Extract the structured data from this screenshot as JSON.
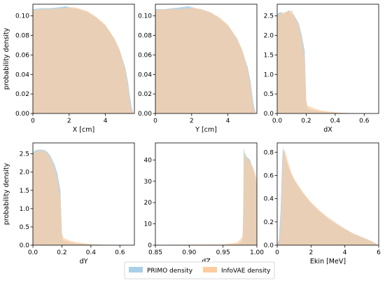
{
  "colors": {
    "primo": "#a9cfe8",
    "infovae": "#fdcc9f",
    "overlap": "#cdb8a6"
  },
  "legend": {
    "items": [
      {
        "label": "PRIMO density",
        "color": "#a9cfe8"
      },
      {
        "label": "InfoVAE density",
        "color": "#fdcc9f"
      }
    ],
    "placement": "bottom-center"
  },
  "chart_data": [
    {
      "type": "area",
      "id": "X",
      "xlabel": "X [cm]",
      "ylabel": "probability density",
      "xlim": [
        0,
        5.6
      ],
      "ylim": [
        0,
        0.112
      ],
      "xticks": [
        0,
        2,
        4
      ],
      "xticklabels": [
        "0",
        "2",
        "4"
      ],
      "yticks": [
        0,
        0.02,
        0.04,
        0.06,
        0.08,
        0.1
      ],
      "yticklabels": [
        "0.00",
        "0.02",
        "0.04",
        "0.06",
        "0.08",
        "0.10"
      ],
      "series": [
        {
          "name": "PRIMO density",
          "x": [
            0,
            0.5,
            1,
            1.5,
            1.8,
            2.2,
            2.5,
            3,
            3.5,
            4,
            4.5,
            4.8,
            5.1,
            5.25,
            5.35,
            5.45,
            5.55
          ],
          "values": [
            0.107,
            0.108,
            0.108,
            0.109,
            0.11,
            0.108,
            0.107,
            0.104,
            0.098,
            0.09,
            0.076,
            0.064,
            0.047,
            0.032,
            0.018,
            0.006,
            0.0
          ]
        },
        {
          "name": "InfoVAE density",
          "x": [
            0,
            0.5,
            1,
            1.5,
            1.8,
            2.2,
            2.5,
            3,
            3.5,
            4,
            4.5,
            4.8,
            5.1,
            5.25,
            5.35,
            5.45,
            5.55
          ],
          "values": [
            0.106,
            0.107,
            0.107,
            0.108,
            0.108,
            0.109,
            0.108,
            0.105,
            0.099,
            0.091,
            0.077,
            0.065,
            0.045,
            0.028,
            0.012,
            0.003,
            0.0
          ]
        }
      ]
    },
    {
      "type": "area",
      "id": "Y",
      "xlabel": "Y [cm]",
      "ylabel": "",
      "xlim": [
        0,
        5.6
      ],
      "ylim": [
        0,
        0.112
      ],
      "xticks": [
        0,
        2,
        4
      ],
      "xticklabels": [
        "0",
        "2",
        "4"
      ],
      "yticks": [
        0,
        0.02,
        0.04,
        0.06,
        0.08,
        0.1
      ],
      "yticklabels": [
        "0.00",
        "0.02",
        "0.04",
        "0.06",
        "0.08",
        "0.10"
      ],
      "series": [
        {
          "name": "PRIMO density",
          "x": [
            0,
            0.5,
            1,
            1.5,
            1.8,
            2.2,
            2.5,
            3,
            3.5,
            4,
            4.5,
            4.8,
            5.1,
            5.25,
            5.35,
            5.45,
            5.55
          ],
          "values": [
            0.107,
            0.107,
            0.108,
            0.109,
            0.11,
            0.108,
            0.107,
            0.104,
            0.098,
            0.09,
            0.077,
            0.064,
            0.047,
            0.033,
            0.018,
            0.006,
            0.0
          ]
        },
        {
          "name": "InfoVAE density",
          "x": [
            0,
            0.5,
            1,
            1.5,
            1.8,
            2.2,
            2.5,
            3,
            3.5,
            4,
            4.5,
            4.8,
            5.1,
            5.25,
            5.35,
            5.45,
            5.55
          ],
          "values": [
            0.106,
            0.107,
            0.107,
            0.107,
            0.108,
            0.108,
            0.107,
            0.104,
            0.099,
            0.091,
            0.077,
            0.065,
            0.045,
            0.029,
            0.013,
            0.003,
            0.0
          ]
        }
      ]
    },
    {
      "type": "area",
      "id": "dX",
      "xlabel": "dX",
      "ylabel": "",
      "xlim": [
        0,
        0.7
      ],
      "ylim": [
        0,
        2.8
      ],
      "xticks": [
        0,
        0.2,
        0.4,
        0.6
      ],
      "xticklabels": [
        "0.0",
        "0.2",
        "0.4",
        "0.6"
      ],
      "yticks": [
        0,
        0.5,
        1.0,
        1.5,
        2.0,
        2.5
      ],
      "yticklabels": [
        "0.0",
        "0.5",
        "1.0",
        "1.5",
        "2.0",
        "2.5"
      ],
      "series": [
        {
          "name": "PRIMO density",
          "x": [
            0,
            0.02,
            0.05,
            0.08,
            0.1,
            0.12,
            0.15,
            0.17,
            0.19,
            0.2,
            0.21,
            0.25,
            0.3,
            0.4,
            0.5,
            0.6,
            0.7
          ],
          "values": [
            2.55,
            2.6,
            2.55,
            2.65,
            2.55,
            2.5,
            2.3,
            2.0,
            1.6,
            0.3,
            0.12,
            0.08,
            0.05,
            0.02,
            0.01,
            0.005,
            0.0
          ]
        },
        {
          "name": "InfoVAE density",
          "x": [
            0,
            0.02,
            0.05,
            0.08,
            0.1,
            0.12,
            0.15,
            0.17,
            0.19,
            0.2,
            0.21,
            0.25,
            0.3,
            0.4,
            0.5,
            0.6,
            0.7
          ],
          "values": [
            2.5,
            2.55,
            2.6,
            2.6,
            2.65,
            2.5,
            2.25,
            1.9,
            1.4,
            0.35,
            0.2,
            0.14,
            0.08,
            0.03,
            0.01,
            0.005,
            0.0
          ]
        }
      ]
    },
    {
      "type": "area",
      "id": "dY",
      "xlabel": "dY",
      "ylabel": "probability density",
      "xlim": [
        0,
        0.7
      ],
      "ylim": [
        0,
        2.8
      ],
      "xticks": [
        0,
        0.2,
        0.4,
        0.6
      ],
      "xticklabels": [
        "0.0",
        "0.2",
        "0.4",
        "0.6"
      ],
      "yticks": [
        0,
        0.5,
        1.0,
        1.5,
        2.0,
        2.5
      ],
      "yticklabels": [
        "0.0",
        "0.5",
        "1.0",
        "1.5",
        "2.0",
        "2.5"
      ],
      "series": [
        {
          "name": "PRIMO density",
          "x": [
            0,
            0.02,
            0.05,
            0.08,
            0.1,
            0.12,
            0.15,
            0.17,
            0.19,
            0.2,
            0.21,
            0.25,
            0.3,
            0.4,
            0.5,
            0.6,
            0.7
          ],
          "values": [
            2.55,
            2.6,
            2.62,
            2.6,
            2.55,
            2.45,
            2.2,
            1.95,
            1.5,
            0.3,
            0.12,
            0.08,
            0.05,
            0.02,
            0.01,
            0.005,
            0.0
          ]
        },
        {
          "name": "InfoVAE density",
          "x": [
            0,
            0.02,
            0.05,
            0.08,
            0.1,
            0.12,
            0.15,
            0.17,
            0.19,
            0.2,
            0.21,
            0.25,
            0.3,
            0.4,
            0.5,
            0.6,
            0.7
          ],
          "values": [
            2.5,
            2.55,
            2.6,
            2.58,
            2.5,
            2.4,
            2.1,
            1.8,
            1.3,
            0.35,
            0.2,
            0.13,
            0.08,
            0.03,
            0.01,
            0.005,
            0.0
          ]
        }
      ]
    },
    {
      "type": "area",
      "id": "dZ",
      "xlabel": "dZ",
      "ylabel": "",
      "xlim": [
        0.85,
        1.0
      ],
      "ylim": [
        0,
        48
      ],
      "xticks": [
        0.85,
        0.9,
        0.95,
        1.0
      ],
      "xticklabels": [
        "0.85",
        "0.90",
        "0.95",
        "1.00"
      ],
      "yticks": [
        0,
        10,
        20,
        30,
        40
      ],
      "yticklabels": [
        "0",
        "10",
        "20",
        "30",
        "40"
      ],
      "series": [
        {
          "name": "PRIMO density",
          "x": [
            0.85,
            0.95,
            0.97,
            0.975,
            0.978,
            0.979,
            0.98,
            0.9805,
            0.982,
            0.985,
            0.99,
            0.995,
            1.0
          ],
          "values": [
            0.05,
            0.2,
            0.5,
            1.0,
            2.0,
            4.0,
            20.0,
            46.0,
            43.0,
            41.5,
            40.0,
            35.0,
            28.0
          ]
        },
        {
          "name": "InfoVAE density",
          "x": [
            0.85,
            0.95,
            0.97,
            0.975,
            0.978,
            0.979,
            0.98,
            0.9805,
            0.982,
            0.985,
            0.99,
            0.995,
            1.0
          ],
          "values": [
            0.08,
            0.4,
            1.2,
            2.5,
            3.5,
            5.0,
            18.0,
            40.0,
            43.5,
            41.0,
            39.0,
            36.0,
            31.0
          ]
        }
      ]
    },
    {
      "type": "area",
      "id": "Ekin",
      "xlabel": "Ekin [MeV]",
      "ylabel": "",
      "xlim": [
        0,
        6
      ],
      "ylim": [
        0,
        0.88
      ],
      "xticks": [
        0,
        2,
        4,
        6
      ],
      "xticklabels": [
        "0",
        "2",
        "4",
        "6"
      ],
      "yticks": [
        0,
        0.2,
        0.4,
        0.6,
        0.8
      ],
      "yticklabels": [
        "0.0",
        "0.2",
        "0.4",
        "0.6",
        "0.8"
      ],
      "series": [
        {
          "name": "PRIMO density",
          "x": [
            0,
            0.1,
            0.2,
            0.3,
            0.35,
            0.45,
            0.6,
            0.8,
            1,
            1.5,
            2,
            2.5,
            3,
            3.5,
            4,
            4.5,
            5,
            5.5,
            5.9
          ],
          "values": [
            0,
            0.05,
            0.3,
            0.75,
            0.84,
            0.78,
            0.7,
            0.62,
            0.56,
            0.45,
            0.36,
            0.29,
            0.23,
            0.18,
            0.14,
            0.1,
            0.07,
            0.04,
            0.01
          ]
        },
        {
          "name": "InfoVAE density",
          "x": [
            0,
            0.1,
            0.2,
            0.3,
            0.35,
            0.45,
            0.6,
            0.8,
            1,
            1.5,
            2,
            2.5,
            3,
            3.5,
            4,
            4.5,
            5,
            5.5,
            5.9
          ],
          "values": [
            0,
            0.02,
            0.15,
            0.6,
            0.78,
            0.82,
            0.74,
            0.64,
            0.57,
            0.46,
            0.37,
            0.3,
            0.24,
            0.19,
            0.14,
            0.1,
            0.07,
            0.04,
            0.01
          ]
        }
      ]
    }
  ]
}
